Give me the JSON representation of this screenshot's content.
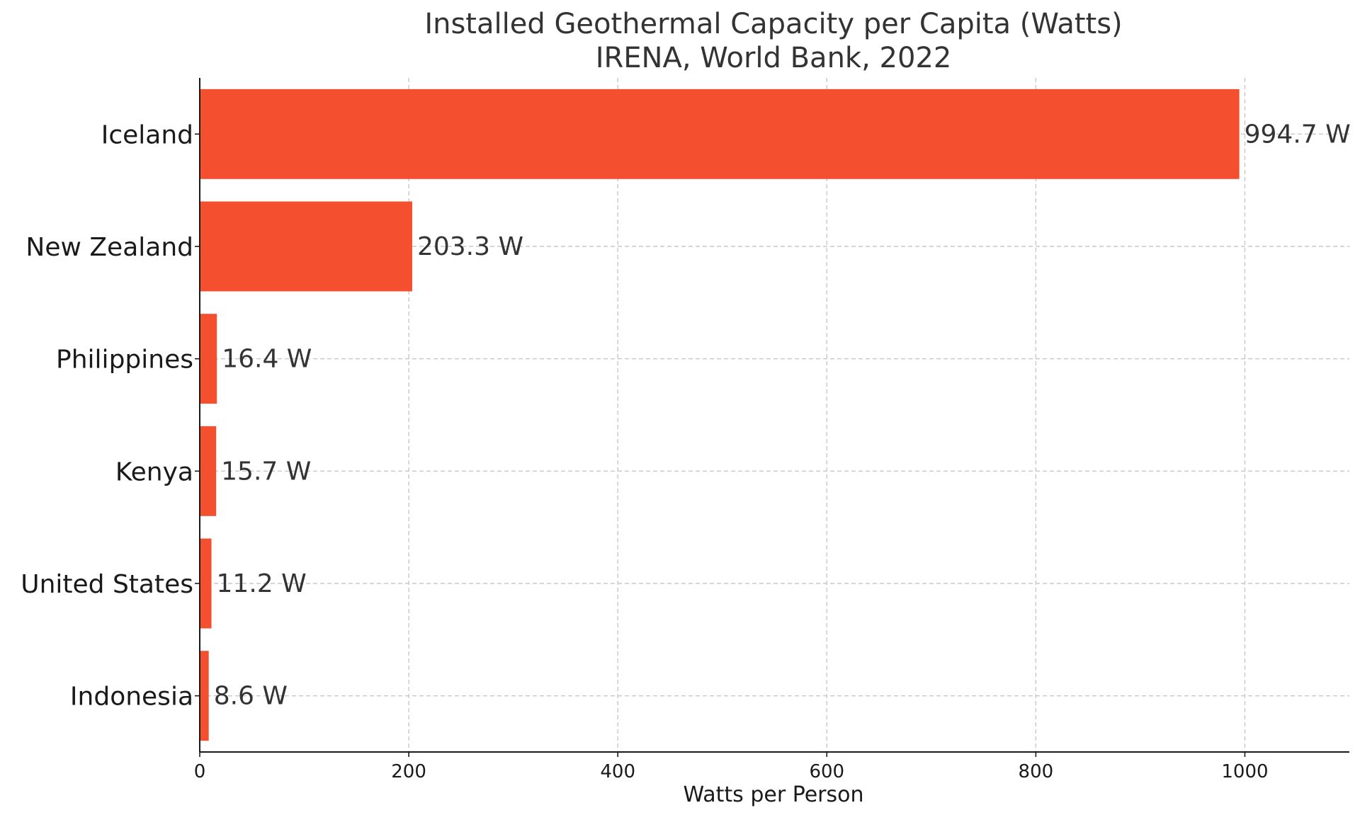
{
  "chart_data": {
    "type": "bar",
    "orientation": "horizontal",
    "title": "Installed Geothermal Capacity per Capita (Watts)",
    "subtitle": "IRENA, World Bank, 2022",
    "xlabel": "Watts per Person",
    "ylabel": "",
    "categories": [
      "Iceland",
      "New Zealand",
      "Philippines",
      "Kenya",
      "United States",
      "Indonesia"
    ],
    "values": [
      994.7,
      203.3,
      16.4,
      15.7,
      11.2,
      8.6
    ],
    "data_labels": [
      "994.7 W",
      "203.3 W",
      "16.4 W",
      "15.7 W",
      "11.2 W",
      "8.6 W"
    ],
    "xlim": [
      0,
      1100
    ],
    "x_ticks": [
      0,
      200,
      400,
      600,
      800,
      1000
    ],
    "x_tick_labels": [
      "0",
      "200",
      "400",
      "600",
      "800",
      "1000"
    ],
    "grid": true,
    "bar_color": "#f4502f"
  }
}
